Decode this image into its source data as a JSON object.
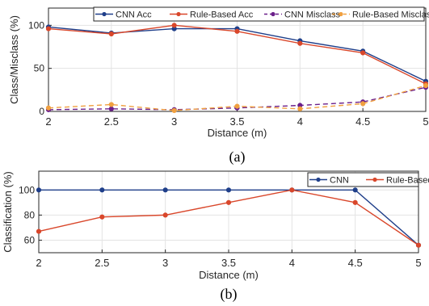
{
  "chart_data": [
    {
      "type": "line",
      "caption": "(a)",
      "x": [
        2,
        2.5,
        3,
        3.5,
        4,
        4.5,
        5
      ],
      "xticks": [
        "2",
        "2.5",
        "3",
        "3.5",
        "4",
        "4.5",
        "5"
      ],
      "yticks": [
        "0",
        "50",
        "100"
      ],
      "xlabel": "Distance (m)",
      "ylabel": "Class/Misclass (%)",
      "xlim": [
        2,
        5
      ],
      "ylim": [
        0,
        120
      ],
      "grid": true,
      "legend_position": "top",
      "series": [
        {
          "name": "CNN Acc",
          "values": [
            98,
            91,
            96,
            96,
            82,
            70,
            35
          ],
          "color": "#1f3f8a",
          "dash": "solid",
          "marker": "circle"
        },
        {
          "name": "Rule-Based Acc",
          "values": [
            96,
            90,
            100,
            93,
            79,
            68,
            32
          ],
          "color": "#d9472b",
          "dash": "solid",
          "marker": "circle"
        },
        {
          "name": "CNN Misclass",
          "values": [
            2,
            3,
            2,
            4,
            7,
            11,
            28
          ],
          "color": "#6b1f8a",
          "dash": "dashed",
          "marker": "circle"
        },
        {
          "name": "Rule-Based Misclass",
          "values": [
            4,
            8,
            1,
            6,
            3,
            9,
            30
          ],
          "color": "#f0a040",
          "dash": "dashed",
          "marker": "circle"
        }
      ]
    },
    {
      "type": "line",
      "caption": "(b)",
      "x": [
        2,
        2.5,
        3,
        3.5,
        4,
        4.5,
        5
      ],
      "xticks": [
        "2",
        "2.5",
        "3",
        "3.5",
        "4",
        "4.5",
        "5"
      ],
      "yticks": [
        "60",
        "80",
        "100"
      ],
      "xlabel": "Distance (m)",
      "ylabel": "Classification (%)",
      "xlim": [
        2,
        5
      ],
      "ylim": [
        50,
        115
      ],
      "grid": true,
      "legend_position": "top-right",
      "series": [
        {
          "name": "CNN",
          "values": [
            100,
            100,
            100,
            100,
            100,
            100,
            56
          ],
          "color": "#1f3f8a",
          "dash": "solid",
          "marker": "circle"
        },
        {
          "name": "Rule-Based",
          "values": [
            67,
            78.5,
            80,
            90,
            100,
            90,
            56
          ],
          "color": "#d9472b",
          "dash": "solid",
          "marker": "circle"
        }
      ]
    }
  ]
}
